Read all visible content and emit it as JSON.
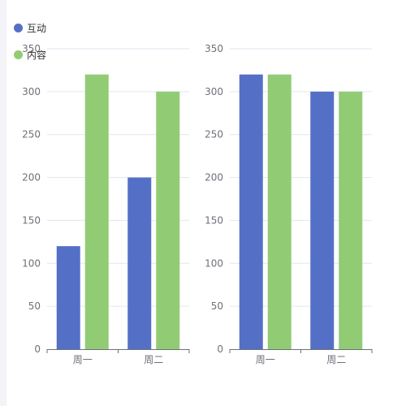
{
  "legend": [
    {
      "name": "互动",
      "color": "#5470c6"
    },
    {
      "name": "内容",
      "color": "#91cc75"
    }
  ],
  "chart_data": [
    {
      "type": "bar",
      "categories": [
        "周一",
        "周二"
      ],
      "series": [
        {
          "name": "互动",
          "values": [
            120,
            200
          ],
          "color": "#5470c6"
        },
        {
          "name": "内容",
          "values": [
            320,
            300
          ],
          "color": "#91cc75"
        }
      ],
      "ylim": [
        0,
        350
      ],
      "yticks": [
        0,
        50,
        100,
        150,
        200,
        250,
        300,
        350
      ],
      "grid": true
    },
    {
      "type": "bar",
      "categories": [
        "周一",
        "周二"
      ],
      "series": [
        {
          "name": "",
          "values": [
            320,
            300
          ],
          "color": "#5470c6"
        },
        {
          "name": "",
          "values": [
            320,
            300
          ],
          "color": "#91cc75"
        }
      ],
      "ylim": [
        0,
        350
      ],
      "yticks": [
        0,
        50,
        100,
        150,
        200,
        250,
        300,
        350
      ],
      "grid": true
    }
  ]
}
